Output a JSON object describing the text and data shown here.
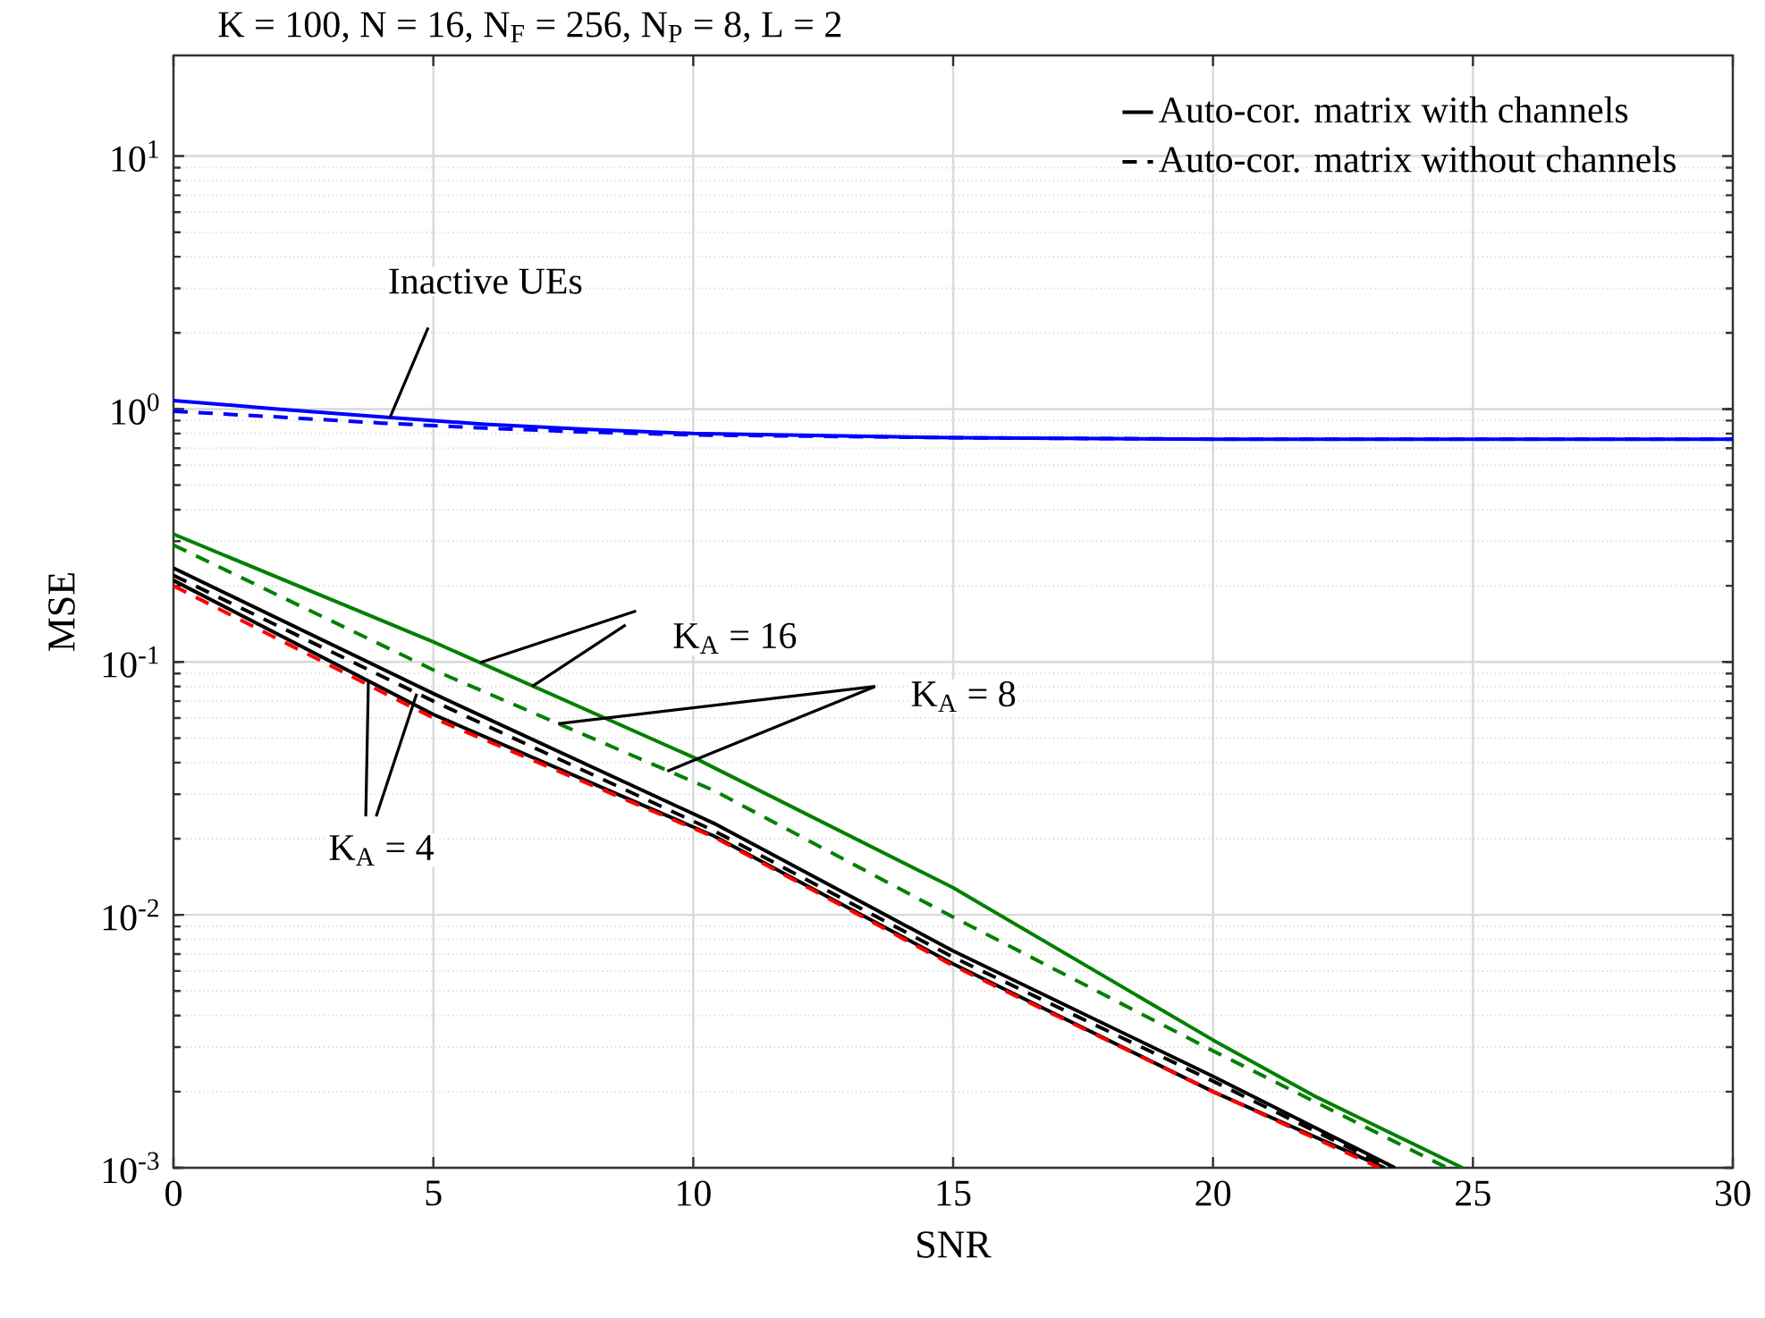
{
  "chart_data": {
    "type": "line",
    "title": "K = 100, N = 16, N$_{F}$ = 256, N$_{P}$ = 8, L = 2",
    "xlabel": "SNR",
    "ylabel": "MSE",
    "log": "y",
    "grid": true,
    "legend": "top right",
    "xlim": [
      0,
      30
    ],
    "xticks": [
      0,
      5,
      10,
      15,
      20,
      25,
      30
    ],
    "ylim": [
      0.001,
      25
    ],
    "yticks": [
      {
        "value": 0.001,
        "label": "10$^{-3}$"
      },
      {
        "value": 0.01,
        "label": "10$^{-2}$"
      },
      {
        "value": 0.1,
        "label": "10$^{-1}$"
      },
      {
        "value": 1,
        "label": "10$^{0}$"
      },
      {
        "value": 10,
        "label": "10$^{1}$"
      }
    ],
    "series": [
      {
        "color": "#0000ff",
        "line_style": "solid",
        "x": [
          0,
          2,
          4,
          6,
          8,
          10,
          15,
          20,
          30
        ],
        "values": [
          1.08,
          1.0,
          0.93,
          0.87,
          0.83,
          0.8,
          0.77,
          0.76,
          0.76
        ]
      },
      {
        "color": "#0000ff",
        "line_style": "dashed",
        "x": [
          0,
          2,
          4,
          6,
          8,
          10,
          15,
          20,
          30
        ],
        "values": [
          0.98,
          0.93,
          0.88,
          0.84,
          0.81,
          0.79,
          0.77,
          0.76,
          0.76
        ]
      },
      {
        "color": "#008000",
        "line_style": "solid",
        "x": [
          0,
          5,
          10,
          15,
          20,
          22,
          24.8
        ],
        "values": [
          0.32,
          0.12,
          0.042,
          0.0128,
          0.0032,
          0.0019,
          0.001
        ]
      },
      {
        "color": "#008000",
        "line_style": "dashed",
        "x": [
          0,
          5,
          10.4,
          15,
          20,
          24.5
        ],
        "values": [
          0.29,
          0.093,
          0.031,
          0.0098,
          0.0029,
          0.001
        ]
      },
      {
        "name": "Auto-cor. matrix with channels",
        "color": "#000000",
        "line_style": "solid",
        "x": [
          0,
          5,
          10.4,
          15,
          20,
          23.5
        ],
        "values": [
          0.235,
          0.075,
          0.023,
          0.0072,
          0.0023,
          0.001
        ]
      },
      {
        "name": "Auto-cor. matrix without channels",
        "color": "#000000",
        "line_style": "dashed",
        "x": [
          0,
          5,
          10.4,
          15,
          20,
          23.4
        ],
        "values": [
          0.22,
          0.07,
          0.0215,
          0.0068,
          0.0022,
          0.001
        ]
      },
      {
        "color": "#000000",
        "line_style": "solid",
        "x": [
          0,
          5,
          10.4,
          15,
          20,
          23.3
        ],
        "values": [
          0.21,
          0.062,
          0.0205,
          0.0064,
          0.002,
          0.001
        ]
      },
      {
        "color": "#ff0000",
        "line_style": "dashed",
        "x": [
          0,
          5,
          10.4,
          15,
          20,
          23.2
        ],
        "values": [
          0.2,
          0.06,
          0.0203,
          0.0063,
          0.002,
          0.001
        ]
      }
    ],
    "annotations": [
      {
        "text": "Inactive UEs",
        "x": 4.16,
        "y": 0.92
      },
      {
        "text": "K$_{A}$ = 16",
        "x": 5.9,
        "y": 0.0995
      },
      {
        "text": "K$_{A}$ = 8",
        "x": 7.4,
        "y": 0.057
      },
      {
        "text": "K$_{A}$ = 4",
        "x": 3.75,
        "y": 0.084
      }
    ]
  }
}
